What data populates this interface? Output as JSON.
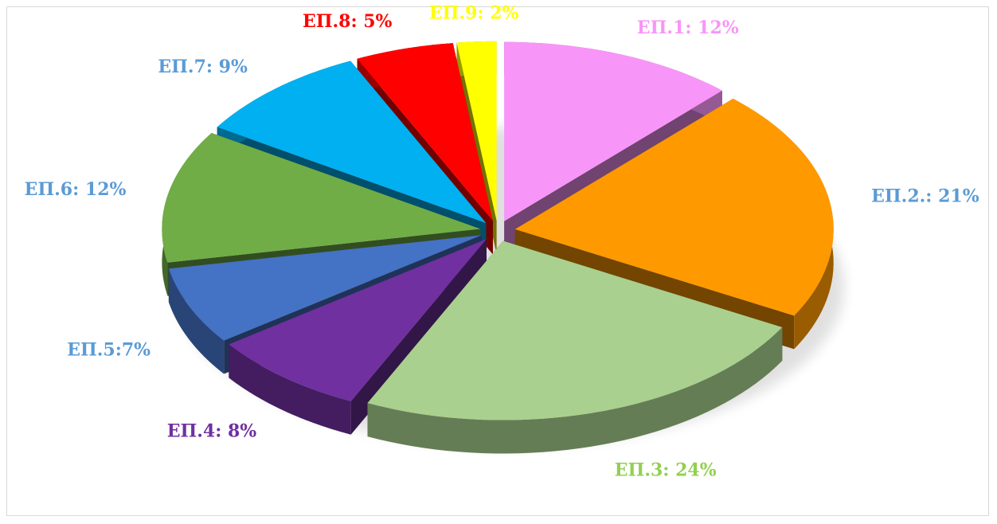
{
  "chart_data": {
    "type": "pie3d",
    "values": [
      12,
      21,
      24,
      8,
      7,
      12,
      9,
      5,
      2
    ],
    "value_labels": [
      "ΕΠ.1: 12%",
      "ΕΠ.2.: 21%",
      "ΕΠ.3: 24%",
      "ΕΠ.4: 8%",
      "ΕΠ.5:7%",
      "ΕΠ.6: 12%",
      "ΕΠ.7: 9%",
      "ΕΠ.8: 5%",
      "ΕΠ.9: 2%"
    ],
    "colors": [
      "#f895f8",
      "#ff9900",
      "#a9d08e",
      "#7030a0",
      "#4472c4",
      "#70ad47",
      "#00b0f0",
      "#ff0000",
      "#ffff00"
    ],
    "label_colors": [
      "#f895f8",
      "#5b9bd5",
      "#92d050",
      "#7030a0",
      "#5b9bd5",
      "#5b9bd5",
      "#5b9bd5",
      "#ff0000",
      "#ffff00"
    ]
  }
}
